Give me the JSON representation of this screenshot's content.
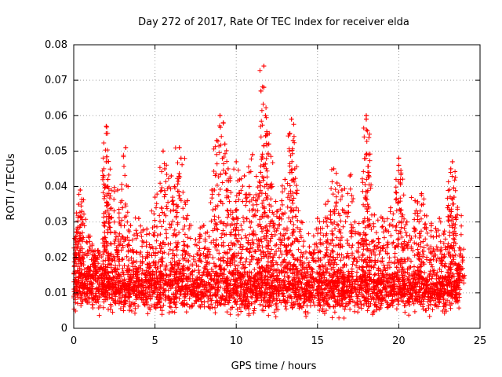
{
  "chart_data": {
    "type": "scatter",
    "title": "Day 272 of 2017, Rate Of TEC Index for receiver elda",
    "xlabel": "GPS time / hours",
    "ylabel": "ROTI / TECUs",
    "xlim": [
      0,
      25
    ],
    "ylim": [
      0,
      0.08
    ],
    "x_ticks": [
      "0",
      "5",
      "10",
      "15",
      "20",
      "25"
    ],
    "y_ticks": [
      "0",
      "0.01",
      "0.02",
      "0.03",
      "0.04",
      "0.05",
      "0.06",
      "0.07",
      "0.08"
    ],
    "grid": true,
    "marker": "+",
    "series": [
      {
        "color": "#ff0000",
        "x_range": [
          0,
          23.8
        ],
        "baseline_typical": 0.011,
        "points": [
          [
            0.1,
            0.025
          ],
          [
            0.2,
            0.028
          ],
          [
            0.3,
            0.035
          ],
          [
            0.4,
            0.039
          ],
          [
            0.5,
            0.033
          ],
          [
            1.0,
            0.026
          ],
          [
            1.5,
            0.022
          ],
          [
            2.0,
            0.057
          ],
          [
            2.0,
            0.055
          ],
          [
            2.0,
            0.047
          ],
          [
            2.1,
            0.042
          ],
          [
            2.1,
            0.04
          ],
          [
            2.5,
            0.027
          ],
          [
            2.7,
            0.039
          ],
          [
            3.0,
            0.034
          ],
          [
            3.2,
            0.051
          ],
          [
            3.5,
            0.029
          ],
          [
            4.0,
            0.031
          ],
          [
            4.5,
            0.028
          ],
          [
            5.0,
            0.037
          ],
          [
            5.5,
            0.05
          ],
          [
            5.6,
            0.045
          ],
          [
            6.0,
            0.043
          ],
          [
            6.2,
            0.04
          ],
          [
            6.5,
            0.051
          ],
          [
            6.6,
            0.048
          ],
          [
            7.0,
            0.036
          ],
          [
            7.5,
            0.025
          ],
          [
            8.0,
            0.029
          ],
          [
            8.5,
            0.039
          ],
          [
            8.8,
            0.053
          ],
          [
            9.0,
            0.06
          ],
          [
            9.2,
            0.058
          ],
          [
            9.3,
            0.052
          ],
          [
            9.5,
            0.045
          ],
          [
            9.8,
            0.031
          ],
          [
            10.0,
            0.047
          ],
          [
            10.2,
            0.038
          ],
          [
            10.5,
            0.043
          ],
          [
            10.8,
            0.04
          ],
          [
            11.0,
            0.049
          ],
          [
            11.2,
            0.036
          ],
          [
            11.5,
            0.044
          ],
          [
            11.7,
            0.074
          ],
          [
            11.7,
            0.068
          ],
          [
            11.8,
            0.06
          ],
          [
            11.9,
            0.055
          ],
          [
            12.0,
            0.052
          ],
          [
            12.2,
            0.04
          ],
          [
            12.5,
            0.033
          ],
          [
            12.8,
            0.036
          ],
          [
            13.0,
            0.042
          ],
          [
            13.3,
            0.055
          ],
          [
            13.4,
            0.059
          ],
          [
            13.5,
            0.053
          ],
          [
            13.6,
            0.045
          ],
          [
            14.0,
            0.03
          ],
          [
            14.5,
            0.023
          ],
          [
            15.0,
            0.031
          ],
          [
            15.5,
            0.035
          ],
          [
            15.8,
            0.033
          ],
          [
            16.0,
            0.045
          ],
          [
            16.2,
            0.041
          ],
          [
            16.5,
            0.039
          ],
          [
            17.0,
            0.043
          ],
          [
            17.3,
            0.03
          ],
          [
            17.8,
            0.03
          ],
          [
            18.0,
            0.06
          ],
          [
            18.0,
            0.059
          ],
          [
            18.0,
            0.049
          ],
          [
            18.1,
            0.044
          ],
          [
            18.5,
            0.032
          ],
          [
            19.0,
            0.031
          ],
          [
            19.5,
            0.034
          ],
          [
            20.0,
            0.048
          ],
          [
            20.0,
            0.046
          ],
          [
            20.1,
            0.041
          ],
          [
            20.5,
            0.03
          ],
          [
            21.0,
            0.036
          ],
          [
            21.4,
            0.038
          ],
          [
            21.5,
            0.035
          ],
          [
            22.0,
            0.029
          ],
          [
            22.5,
            0.031
          ],
          [
            23.0,
            0.034
          ],
          [
            23.2,
            0.045
          ],
          [
            23.3,
            0.047
          ],
          [
            23.4,
            0.037
          ],
          [
            23.6,
            0.032
          ],
          [
            23.8,
            0.021
          ]
        ]
      }
    ]
  }
}
